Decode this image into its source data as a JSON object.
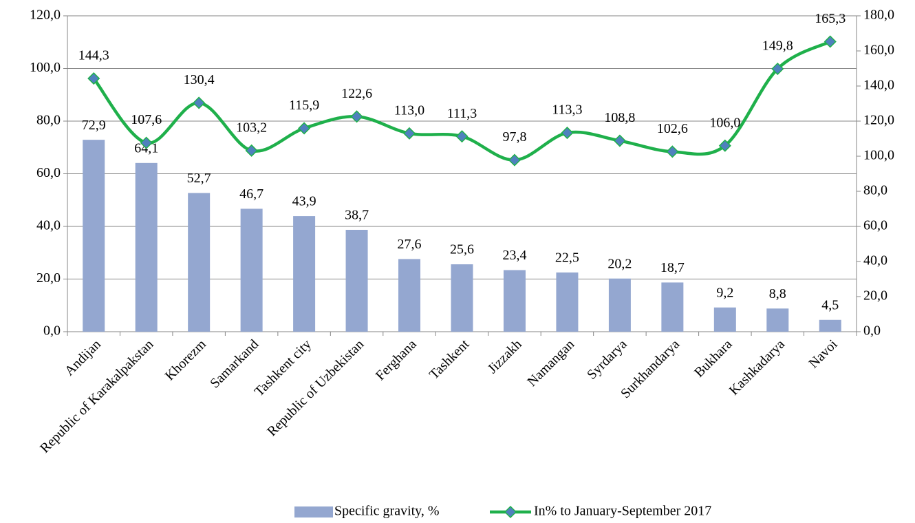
{
  "chart_data": {
    "type": "bar",
    "categories": [
      "Andijan",
      "Republic of Karakalpakstan",
      "Khorezm",
      "Samarkand",
      "Tashkent city",
      "Republic of Uzbekistan",
      "Ferghana",
      "Tashkent",
      "Jizzakh",
      "Namangan",
      "Syrdarya",
      "Surkhandarya",
      "Bukhara",
      "Kashkadarya",
      "Navoi"
    ],
    "series": [
      {
        "name": "Specific gravity, %",
        "type": "bar",
        "color": "#94a7d0",
        "values": [
          72.9,
          64.1,
          52.7,
          46.7,
          43.9,
          38.7,
          27.6,
          25.6,
          23.4,
          22.5,
          20.2,
          18.7,
          9.2,
          8.8,
          4.5
        ],
        "value_labels": [
          "72,9",
          "64,1",
          "52,7",
          "46,7",
          "43,9",
          "38,7",
          "27,6",
          "25,6",
          "23,4",
          "22,5",
          "20,2",
          "18,7",
          "9,2",
          "8,8",
          "4,5"
        ]
      },
      {
        "name": "In% to January-September 2017",
        "type": "line",
        "axis": "y2",
        "color": "#1fb04b",
        "marker_color": "#4f81bd",
        "values": [
          144.3,
          107.6,
          130.4,
          103.2,
          115.9,
          122.6,
          113.0,
          111.3,
          97.8,
          113.3,
          108.8,
          102.6,
          106.0,
          149.8,
          165.3
        ],
        "value_labels": [
          "144,3",
          "107,6",
          "130,4",
          "103,2",
          "115,9",
          "122,6",
          "113,0",
          "111,3",
          "97,8",
          "113,3",
          "108,8",
          "102,6",
          "106,0",
          "149,8",
          "165,3"
        ]
      }
    ],
    "ylim": [
      0,
      120
    ],
    "yticks": [
      {
        "value": 0,
        "label": "0,0"
      },
      {
        "value": 20,
        "label": "20,0"
      },
      {
        "value": 40,
        "label": "40,0"
      },
      {
        "value": 60,
        "label": "60,0"
      },
      {
        "value": 80,
        "label": "80,0"
      },
      {
        "value": 100,
        "label": "100,0"
      },
      {
        "value": 120,
        "label": "120,0"
      }
    ],
    "y2lim": [
      0,
      180
    ],
    "y2ticks": [
      {
        "value": 0,
        "label": "0,0"
      },
      {
        "value": 20,
        "label": "20,0"
      },
      {
        "value": 40,
        "label": "40,0"
      },
      {
        "value": 60,
        "label": "60,0"
      },
      {
        "value": 80,
        "label": "80,0"
      },
      {
        "value": 100,
        "label": "100,0"
      },
      {
        "value": 120,
        "label": "120,0"
      },
      {
        "value": 140,
        "label": "140,0"
      },
      {
        "value": 160,
        "label": "160,0"
      },
      {
        "value": 180,
        "label": "180,0"
      }
    ],
    "grid": true,
    "legend": "bottom"
  }
}
